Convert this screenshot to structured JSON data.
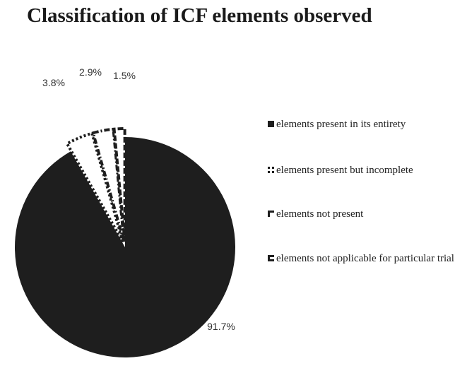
{
  "chart_data": {
    "type": "pie",
    "title": "Classification of ICF elements observed",
    "slices": [
      {
        "label": "elements present in its entirety",
        "value": 91.7,
        "value_label": "91.7%",
        "style": "solid"
      },
      {
        "label": "elements present but incomplete",
        "value": 3.8,
        "value_label": "3.8%",
        "style": "dotted"
      },
      {
        "label": "elements not present",
        "value": 2.9,
        "value_label": "2.9%",
        "style": "dash-dot"
      },
      {
        "label": "elements not applicable for particular trial",
        "value": 1.5,
        "value_label": "1.5%",
        "style": "dashed"
      }
    ],
    "legend_position": "right"
  },
  "colors": {
    "fill": "#1e1e1e",
    "background": "#ffffff"
  }
}
